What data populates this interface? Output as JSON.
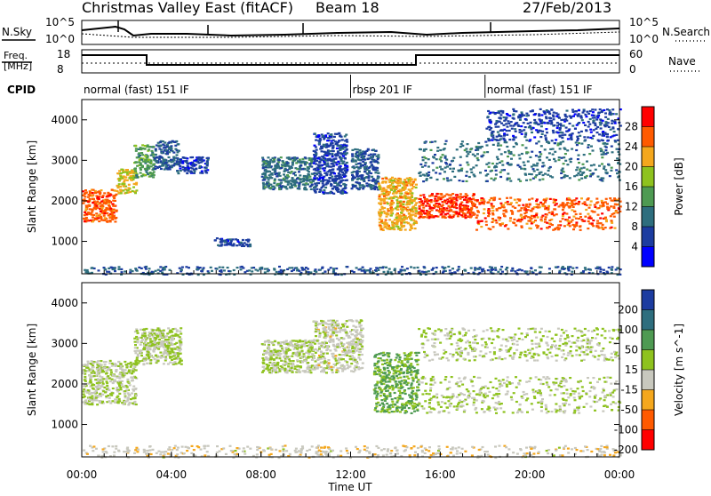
{
  "header": {
    "title": "Christmas Valley East (fitACF)",
    "beam": "Beam 18",
    "date": "27/Feb/2013"
  },
  "sky_panel": {
    "left_label": "N.Sky",
    "right_label": "N.Search",
    "left_ticks": [
      "10^5",
      "10^0"
    ],
    "right_ticks": [
      "10^5",
      "10^0"
    ]
  },
  "freq_panel": {
    "left_label_1": "Freq.",
    "left_label_2": "[MHz]",
    "right_label": "Nave",
    "left_ticks": [
      "18",
      "8"
    ],
    "right_ticks": [
      "60",
      "0"
    ]
  },
  "cpid": {
    "label": "CPID",
    "modes": [
      {
        "name": "normal (fast) 151 IF",
        "start_hour": 0,
        "end_hour": 12
      },
      {
        "name": "rbsp 201 IF",
        "start_hour": 12,
        "end_hour": 18
      },
      {
        "name": "normal (fast) 151 IF",
        "start_hour": 18,
        "end_hour": 24
      }
    ]
  },
  "chart_data": [
    {
      "type": "heatmap",
      "title": "",
      "xlabel": "",
      "ylabel": "Slant Range [km]",
      "xlim": [
        0,
        24
      ],
      "ylim": [
        200,
        4500
      ],
      "yticks": [
        1000,
        2000,
        3000,
        4000
      ],
      "colorbar": {
        "label": "Power [dB]",
        "range": [
          0,
          32
        ],
        "ticks": [
          4,
          8,
          12,
          16,
          20,
          24,
          28
        ],
        "colors": [
          "#0000ff",
          "#1c3ca0",
          "#2e6e7e",
          "#4e9a52",
          "#8ec21e",
          "#f4a71d",
          "#ff5a00",
          "#ff0000"
        ]
      },
      "regions": [
        {
          "t0": 0.0,
          "t1": 1.5,
          "r0": 1500,
          "r1": 2300,
          "value": 26
        },
        {
          "t0": 1.5,
          "t1": 2.4,
          "r0": 2200,
          "r1": 2800,
          "value": 20
        },
        {
          "t0": 2.3,
          "t1": 3.2,
          "r0": 2600,
          "r1": 3400,
          "value": 14
        },
        {
          "t0": 3.2,
          "t1": 4.3,
          "r0": 2800,
          "r1": 3500,
          "value": 8
        },
        {
          "t0": 4.2,
          "t1": 5.6,
          "r0": 2700,
          "r1": 3100,
          "value": 6
        },
        {
          "t0": 5.8,
          "t1": 7.5,
          "r0": 900,
          "r1": 1100,
          "value": 6
        },
        {
          "t0": 8.0,
          "t1": 10.3,
          "r0": 2300,
          "r1": 3100,
          "value": 10
        },
        {
          "t0": 10.3,
          "t1": 11.8,
          "r0": 2200,
          "r1": 3700,
          "value": 6
        },
        {
          "t0": 12.0,
          "t1": 13.2,
          "r0": 2300,
          "r1": 3300,
          "value": 8
        },
        {
          "t0": 13.2,
          "t1": 14.9,
          "r0": 1300,
          "r1": 2600,
          "value": 22
        },
        {
          "t0": 15.0,
          "t1": 17.5,
          "r0": 1600,
          "r1": 2200,
          "value": 28
        },
        {
          "t0": 17.5,
          "t1": 24.0,
          "r0": 1300,
          "r1": 2100,
          "value": 26
        },
        {
          "t0": 15.0,
          "t1": 24.0,
          "r0": 2500,
          "r1": 3500,
          "value": 10
        },
        {
          "t0": 18.0,
          "t1": 24.0,
          "r0": 3500,
          "r1": 4300,
          "value": 6
        },
        {
          "t0": 0.0,
          "t1": 24.0,
          "r0": 200,
          "r1": 400,
          "value": 8
        }
      ]
    },
    {
      "type": "heatmap",
      "title": "",
      "xlabel": "Time UT",
      "ylabel": "Slant Range [km]",
      "xlim": [
        0,
        24
      ],
      "ylim": [
        200,
        4500
      ],
      "yticks": [
        1000,
        2000,
        3000,
        4000
      ],
      "xticks": [
        "00:00",
        "04:00",
        "08:00",
        "12:00",
        "16:00",
        "20:00",
        "00:00"
      ],
      "colorbar": {
        "label": "Velocity [m s^-1]",
        "range": [
          -250,
          250
        ],
        "ticks": [
          200,
          100,
          50,
          15,
          -15,
          -50,
          -100,
          -200
        ],
        "colors": [
          "#ff0000",
          "#ff5a00",
          "#f4a71d",
          "#c8c8be",
          "#8ec21e",
          "#4e9a52",
          "#2e6e7e",
          "#1c3ca0"
        ]
      },
      "regions": [
        {
          "t0": 0.0,
          "t1": 2.4,
          "r0": 1500,
          "r1": 2600,
          "value": 0
        },
        {
          "t0": 2.3,
          "t1": 4.4,
          "r0": 2500,
          "r1": 3400,
          "value": 0
        },
        {
          "t0": 8.0,
          "t1": 10.3,
          "r0": 2300,
          "r1": 3100,
          "value": 0
        },
        {
          "t0": 10.3,
          "t1": 12.5,
          "r0": 2300,
          "r1": 3600,
          "value": -20
        },
        {
          "t0": 13.0,
          "t1": 15.0,
          "r0": 1300,
          "r1": 2800,
          "value": 70
        },
        {
          "t0": 15.0,
          "t1": 24.0,
          "r0": 1300,
          "r1": 2200,
          "value": 0
        },
        {
          "t0": 15.0,
          "t1": 24.0,
          "r0": 2600,
          "r1": 3400,
          "value": 0
        },
        {
          "t0": 0.0,
          "t1": 24.0,
          "r0": 200,
          "r1": 500,
          "value": -40
        }
      ]
    }
  ]
}
